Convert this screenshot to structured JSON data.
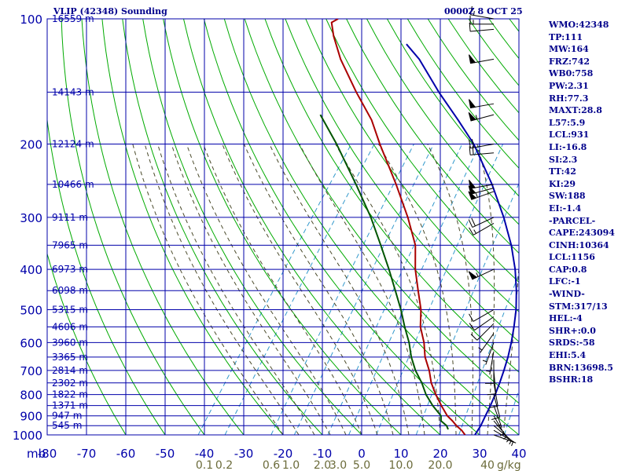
{
  "header": {
    "title": "VLIP (42348) Sounding",
    "datetime": "0000Z  8 OCT 25"
  },
  "indices": [
    "WMO:42348",
    "TP:111",
    "MW:164",
    "FRZ:742",
    "WB0:758",
    "PW:2.31",
    "RH:77.3",
    "MAXT:28.8",
    "L57:5.9",
    "LCL:931",
    "LI:-16.8",
    "SI:2.3",
    "TT:42",
    "KI:29",
    "SW:188",
    "EI:-1.4",
    "-PARCEL-",
    "CAPE:243094",
    "CINH:10364",
    "LCL:1156",
    "CAP:0.8",
    "LFC:-1",
    "-WIND-",
    "STM:317/13",
    "HEL:-4",
    "SHR+:0.0",
    "SRDS:-58",
    "EHI:5.4",
    "BRN:13698.5",
    "BSHR:18"
  ],
  "colors": {
    "grid": "#0000aa",
    "dry_adiabat": "#00aa00",
    "moist_adiabat": "#4a4a2a",
    "mixing_ratio": "#3399cc",
    "temperature": "#aa0000",
    "dewpoint": "#005500",
    "parcel": "#0000aa",
    "axis_text": "#0000aa",
    "mixing_text": "#6b6b3a",
    "wind": "#000000"
  },
  "chart_data": {
    "type": "line",
    "title": "VLIP (42348) Sounding",
    "subtitle": "0000Z  8 OCT 25",
    "pressure_unit_label": "mb",
    "mixing_ratio_unit_label": "g/kg",
    "x_range_at_1000mb": [
      -80,
      40
    ],
    "y_pressure_range": [
      1000,
      100
    ],
    "y_scale": "log",
    "temperature_ticks": [
      "-80",
      "-70",
      "-60",
      "-50",
      "-40",
      "-30",
      "-20",
      "-10",
      "0",
      "10",
      "20",
      "30",
      "40"
    ],
    "pressure_ticks": [
      "100",
      "200",
      "300",
      "400",
      "500",
      "600",
      "700",
      "800",
      "900",
      "1000"
    ],
    "height_labels": [
      {
        "p": 100,
        "label": "16559 m"
      },
      {
        "p": 150,
        "label": "14143 m"
      },
      {
        "p": 200,
        "label": "12124 m"
      },
      {
        "p": 250,
        "label": "10466 m"
      },
      {
        "p": 300,
        "label": "9111 m"
      },
      {
        "p": 350,
        "label": "7965 m"
      },
      {
        "p": 400,
        "label": "6973 m"
      },
      {
        "p": 450,
        "label": "6098 m"
      },
      {
        "p": 500,
        "label": "5315 m"
      },
      {
        "p": 550,
        "label": "4606 m"
      },
      {
        "p": 600,
        "label": "3960 m"
      },
      {
        "p": 650,
        "label": "3365 m"
      },
      {
        "p": 700,
        "label": "2814 m"
      },
      {
        "p": 750,
        "label": "2302 m"
      },
      {
        "p": 800,
        "label": "1822 m"
      },
      {
        "p": 850,
        "label": "1371 m"
      },
      {
        "p": 900,
        "label": "947 m"
      },
      {
        "p": 950,
        "label": "545 m"
      }
    ],
    "mixing_ratio_ticks": [
      {
        "label": "0.1",
        "t": -40
      },
      {
        "label": "0.2",
        "t": -35
      },
      {
        "label": "0.6",
        "t": -23
      },
      {
        "label": "1.0",
        "t": -18
      },
      {
        "label": "2.0",
        "t": -10
      },
      {
        "label": "3.0",
        "t": -6
      },
      {
        "label": "5.0",
        "t": 0
      },
      {
        "label": "10.0",
        "t": 10
      },
      {
        "label": "20.0",
        "t": 20
      },
      {
        "label": "40",
        "t": 32
      }
    ],
    "series": [
      {
        "type": "temperature",
        "points": [
          [
            1000,
            26.3
          ],
          [
            975,
            24.6
          ],
          [
            950,
            22.4
          ],
          [
            925,
            20.5
          ],
          [
            900,
            18.3
          ],
          [
            850,
            14.9
          ],
          [
            800,
            11.5
          ],
          [
            750,
            8.2
          ],
          [
            700,
            5.4
          ],
          [
            650,
            1.9
          ],
          [
            600,
            -1.0
          ],
          [
            550,
            -4.8
          ],
          [
            500,
            -7.8
          ],
          [
            450,
            -12.0
          ],
          [
            400,
            -16.6
          ],
          [
            350,
            -21.0
          ],
          [
            300,
            -28.0
          ],
          [
            250,
            -37.0
          ],
          [
            200,
            -48.5
          ],
          [
            175,
            -55.0
          ],
          [
            150,
            -64.0
          ],
          [
            125,
            -74.0
          ],
          [
            110,
            -80.0
          ],
          [
            102,
            -83.0
          ],
          [
            100,
            -82.0
          ]
        ]
      },
      {
        "type": "dewpoint",
        "points": [
          [
            970,
            21.0
          ],
          [
            950,
            19.9
          ],
          [
            925,
            17.6
          ],
          [
            900,
            16.7
          ],
          [
            850,
            12.7
          ],
          [
            800,
            9.0
          ],
          [
            750,
            5.8
          ],
          [
            700,
            1.9
          ],
          [
            650,
            -1.6
          ],
          [
            600,
            -4.8
          ],
          [
            550,
            -8.8
          ],
          [
            500,
            -12.9
          ],
          [
            450,
            -17.8
          ],
          [
            400,
            -23.3
          ],
          [
            350,
            -29.8
          ],
          [
            300,
            -37.4
          ],
          [
            250,
            -47.2
          ],
          [
            200,
            -59.5
          ],
          [
            170,
            -69.0
          ]
        ]
      },
      {
        "type": "parcel",
        "points": [
          [
            1000,
            28.8
          ],
          [
            950,
            28.6
          ],
          [
            900,
            28.0
          ],
          [
            850,
            27.4
          ],
          [
            800,
            26.6
          ],
          [
            750,
            25.6
          ],
          [
            700,
            24.4
          ],
          [
            650,
            23.0
          ],
          [
            600,
            21.2
          ],
          [
            550,
            19.0
          ],
          [
            500,
            16.4
          ],
          [
            450,
            13.0
          ],
          [
            400,
            8.8
          ],
          [
            350,
            3.4
          ],
          [
            300,
            -3.6
          ],
          [
            250,
            -12.6
          ],
          [
            200,
            -24.6
          ],
          [
            175,
            -33.0
          ],
          [
            150,
            -43.0
          ],
          [
            125,
            -54.0
          ],
          [
            115,
            -60.0
          ]
        ]
      }
    ],
    "wind_barbs": [
      {
        "p": 100,
        "dir": 280,
        "kt": 15
      },
      {
        "p": 103,
        "dir": 270,
        "kt": 15
      },
      {
        "p": 106,
        "dir": 265,
        "kt": 10
      },
      {
        "p": 125,
        "dir": 260,
        "kt": 50
      },
      {
        "p": 160,
        "dir": 260,
        "kt": 50
      },
      {
        "p": 170,
        "dir": 255,
        "kt": 55
      },
      {
        "p": 200,
        "dir": 260,
        "kt": 20
      },
      {
        "p": 210,
        "dir": 265,
        "kt": 20
      },
      {
        "p": 250,
        "dir": 260,
        "kt": 50
      },
      {
        "p": 255,
        "dir": 255,
        "kt": 50
      },
      {
        "p": 260,
        "dir": 250,
        "kt": 55
      },
      {
        "p": 300,
        "dir": 245,
        "kt": 20
      },
      {
        "p": 310,
        "dir": 240,
        "kt": 15
      },
      {
        "p": 400,
        "dir": 245,
        "kt": 55
      },
      {
        "p": 500,
        "dir": 240,
        "kt": 10
      },
      {
        "p": 520,
        "dir": 235,
        "kt": 10
      },
      {
        "p": 540,
        "dir": 225,
        "kt": 10
      },
      {
        "p": 570,
        "dir": 215,
        "kt": 5
      },
      {
        "p": 600,
        "dir": 200,
        "kt": 5
      },
      {
        "p": 630,
        "dir": 190,
        "kt": 5
      },
      {
        "p": 660,
        "dir": 180,
        "kt": 10
      },
      {
        "p": 700,
        "dir": 175,
        "kt": 10
      },
      {
        "p": 750,
        "dir": 170,
        "kt": 10
      },
      {
        "p": 800,
        "dir": 165,
        "kt": 10
      },
      {
        "p": 850,
        "dir": 160,
        "kt": 5
      },
      {
        "p": 900,
        "dir": 150,
        "kt": 5
      },
      {
        "p": 925,
        "dir": 140,
        "kt": 5
      },
      {
        "p": 950,
        "dir": 130,
        "kt": 5
      },
      {
        "p": 975,
        "dir": 120,
        "kt": 5
      },
      {
        "p": 1000,
        "dir": 110,
        "kt": 5
      }
    ]
  }
}
